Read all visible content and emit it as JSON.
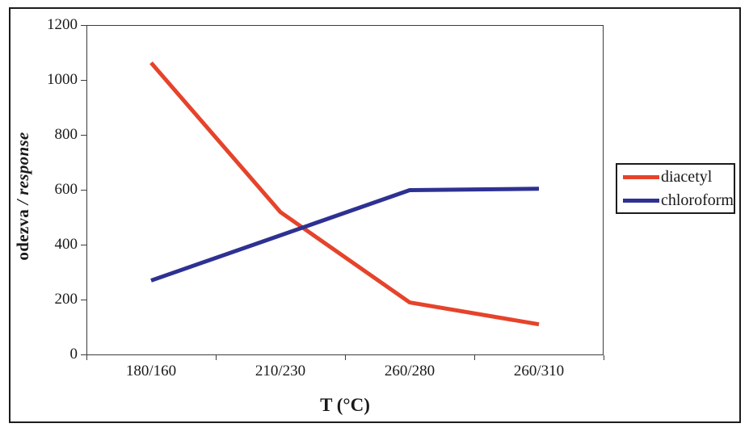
{
  "chart_data": {
    "type": "line",
    "title": "",
    "categories": [
      "180/160",
      "210/230",
      "260/280",
      "260/310"
    ],
    "series": [
      {
        "name": "diacetyl",
        "color": "#e6432b",
        "values": [
          1065,
          520,
          190,
          110
        ]
      },
      {
        "name": "chloroform",
        "color": "#2e3192",
        "values": [
          270,
          435,
          600,
          605
        ]
      }
    ],
    "xlabel": "T (°C)",
    "ylabel": "odezva / response",
    "ylim": [
      0,
      1200
    ],
    "y_ticks": [
      1200,
      1000,
      800,
      600,
      400,
      200,
      0
    ],
    "grid": false,
    "legend_position": "right-outside",
    "line_width": 5
  },
  "axes": {
    "x_label": "T (°C)",
    "y_label_roman": "odezva ",
    "y_label_italic": "/ response"
  }
}
